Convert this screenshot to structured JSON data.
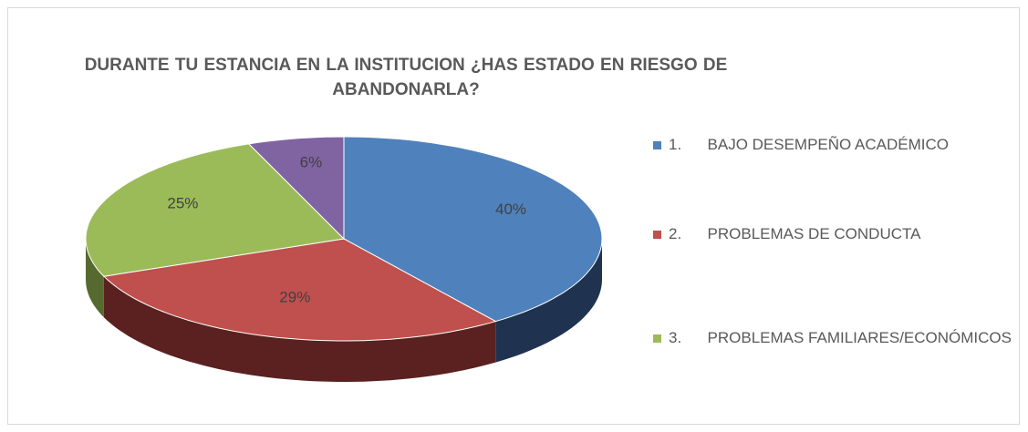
{
  "chart_data": {
    "type": "pie",
    "title": "DURANTE TU ESTANCIA  EN LA INSTITUCION ¿HAS ESTADO EN RIESGO DE ABANDONARLA?",
    "categories": [
      "1.      BAJO DESEMPEÑO ACADÉMICO",
      "2.      PROBLEMAS DE CONDUCTA",
      "3.      PROBLEMAS FAMILIARES/ECONÓMICOS",
      null
    ],
    "values": [
      40,
      29,
      25,
      6
    ],
    "value_labels": [
      "40%",
      "29%",
      "25%",
      "6%"
    ],
    "colors": [
      "#4f81bd",
      "#c0504d",
      "#9bbb59",
      "#8064a2"
    ],
    "side_colors": [
      "#1f3350",
      "#5a2120",
      "#56692e",
      "#45365a"
    ],
    "legend": "right"
  }
}
